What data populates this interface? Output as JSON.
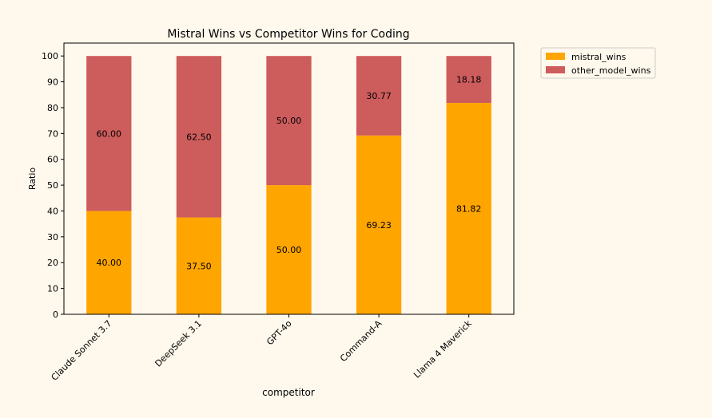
{
  "chart_data": {
    "type": "bar",
    "stacked": true,
    "title": "Mistral Wins vs Competitor Wins for Coding",
    "xlabel": "competitor",
    "ylabel": "Ratio",
    "ylim": [
      0,
      105
    ],
    "yticks": [
      0,
      10,
      20,
      30,
      40,
      50,
      60,
      70,
      80,
      90,
      100
    ],
    "categories": [
      "Claude Sonnet 3.7",
      "DeepSeek 3.1",
      "GPT-4o",
      "Command-A",
      "Llama 4 Maverick"
    ],
    "series": [
      {
        "name": "mistral_wins",
        "color": "#ffa500",
        "values": [
          40.0,
          37.5,
          50.0,
          69.23,
          81.82
        ],
        "labels": [
          "40.00",
          "37.50",
          "50.00",
          "69.23",
          "81.82"
        ]
      },
      {
        "name": "other_model_wins",
        "color": "#cd5c5c",
        "values": [
          60.0,
          62.5,
          50.0,
          30.77,
          18.18
        ],
        "labels": [
          "60.00",
          "62.50",
          "50.00",
          "30.77",
          "18.18"
        ]
      }
    ],
    "legend_position": "outside-top-right",
    "grid": false
  }
}
